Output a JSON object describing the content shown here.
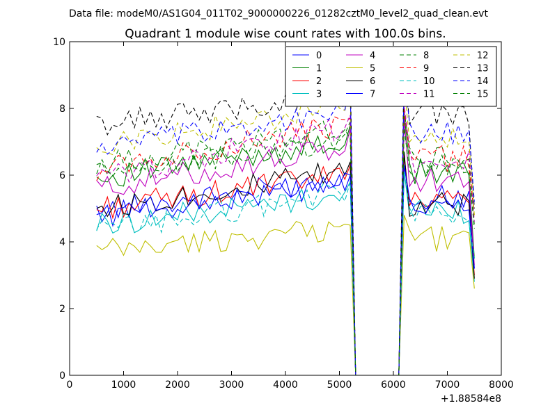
{
  "suptitle": "Data file: modeM0/AS1G04_011T02_9000000226_01282cztM0_level2_quad_clean.evt",
  "chart_data": {
    "type": "line",
    "title": "Quadrant 1 module wise count rates with 100.0s bins.",
    "xlabel": "",
    "ylabel": "",
    "x_offset_label": "+1.88584e8",
    "xlim": [
      0,
      8000
    ],
    "ylim": [
      0,
      10
    ],
    "xticks": [
      "0",
      "1000",
      "2000",
      "3000",
      "4000",
      "5000",
      "6000",
      "7000",
      "8000"
    ],
    "yticks": [
      "0",
      "2",
      "4",
      "6",
      "8",
      "10"
    ],
    "grid": false,
    "legend_position": "upper-right",
    "legend_columns": 4,
    "x_active_1": [
      500,
      600,
      700,
      800,
      900,
      1000,
      1100,
      1200,
      1300,
      1400,
      1500,
      1600,
      1700,
      1800,
      1900,
      2000,
      2100,
      2200,
      2300,
      2400,
      2500,
      2600,
      2700,
      2800,
      2900,
      3000,
      3100,
      3200,
      3300,
      3400,
      3500,
      3600,
      3700,
      3800,
      3900,
      4000,
      4100,
      4200,
      4300,
      4400,
      4500,
      4600,
      4700,
      4800,
      4900,
      5000,
      5100,
      5200
    ],
    "gap": {
      "x": [
        5300,
        5400,
        6000,
        6100
      ],
      "y": [
        0,
        0,
        0,
        0
      ]
    },
    "x_active_2": [
      6100,
      6200,
      6300,
      6400,
      6500,
      6600,
      6700,
      6800,
      6900,
      7000,
      7100,
      7200,
      7300,
      7400,
      7500
    ],
    "series": [
      {
        "name": "0",
        "color": "#0000ff",
        "dash": "solid",
        "base": 4.9,
        "slope": 1.0,
        "late": 5.3,
        "end": 3.2,
        "peak": 6.0
      },
      {
        "name": "1",
        "color": "#008000",
        "dash": "solid",
        "base": 5.9,
        "slope": 1.1,
        "late": 6.1,
        "end": 3.5,
        "peak": 7.5
      },
      {
        "name": "2",
        "color": "#ff0000",
        "dash": "solid",
        "base": 5.0,
        "slope": 1.0,
        "late": 5.3,
        "end": 3.0,
        "peak": 6.3
      },
      {
        "name": "3",
        "color": "#00bfbf",
        "dash": "solid",
        "base": 4.5,
        "slope": 0.9,
        "late": 4.9,
        "end": 2.8,
        "peak": 5.8
      },
      {
        "name": "4",
        "color": "#bf00bf",
        "dash": "solid",
        "base": 5.6,
        "slope": 1.2,
        "late": 5.9,
        "end": 3.3,
        "peak": 7.4
      },
      {
        "name": "5",
        "color": "#bfbf00",
        "dash": "solid",
        "base": 3.7,
        "slope": 0.7,
        "late": 4.1,
        "end": 2.6,
        "peak": 4.5
      },
      {
        "name": "6",
        "color": "#000000",
        "dash": "solid",
        "base": 5.0,
        "slope": 1.1,
        "late": 5.1,
        "end": 2.9,
        "peak": 6.4
      },
      {
        "name": "7",
        "color": "#0000ff",
        "dash": "solid",
        "base": 4.8,
        "slope": 0.9,
        "late": 5.0,
        "end": 3.2,
        "peak": 6.0
      },
      {
        "name": "8",
        "color": "#008000",
        "dash": "dashed",
        "base": 6.3,
        "slope": 1.1,
        "late": 6.5,
        "end": 4.5,
        "peak": 7.6
      },
      {
        "name": "9",
        "color": "#ff0000",
        "dash": "dashed",
        "base": 6.2,
        "slope": 1.3,
        "late": 6.5,
        "end": 4.8,
        "peak": 7.7
      },
      {
        "name": "10",
        "color": "#00bfbf",
        "dash": "dashed",
        "base": 4.3,
        "slope": 1.2,
        "late": 4.9,
        "end": 3.5,
        "peak": 5.8
      },
      {
        "name": "11",
        "color": "#bf00bf",
        "dash": "dashed",
        "base": 5.9,
        "slope": 1.5,
        "late": 6.4,
        "end": 4.6,
        "peak": 7.8
      },
      {
        "name": "12",
        "color": "#bfbf00",
        "dash": "dashed",
        "base": 6.9,
        "slope": 1.1,
        "late": 7.1,
        "end": 4.8,
        "peak": 8.4
      },
      {
        "name": "13",
        "color": "#000000",
        "dash": "dashed",
        "base": 7.5,
        "slope": 0.9,
        "late": 7.9,
        "end": 5.0,
        "peak": 9.1
      },
      {
        "name": "14",
        "color": "#0000ff",
        "dash": "dashed",
        "base": 6.8,
        "slope": 1.1,
        "late": 7.2,
        "end": 5.2,
        "peak": 8.7
      },
      {
        "name": "15",
        "color": "#008000",
        "dash": "dashed",
        "base": 6.1,
        "slope": 0.9,
        "late": 6.2,
        "end": 4.4,
        "peak": 7.1
      }
    ]
  }
}
